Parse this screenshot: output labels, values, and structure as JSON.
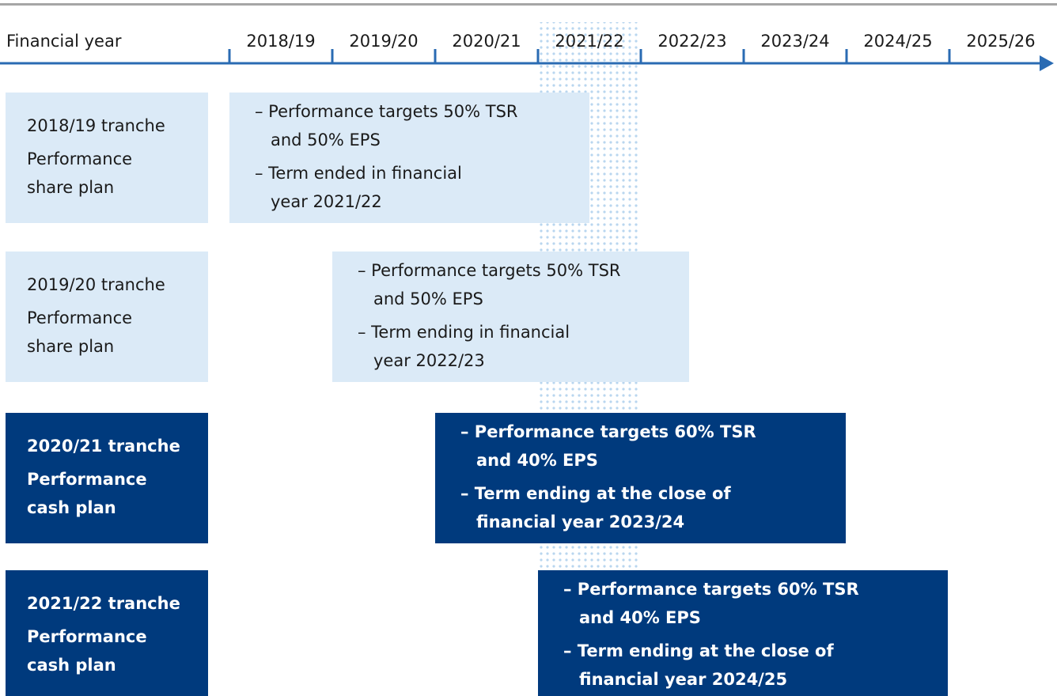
{
  "axis_label": "Financial year",
  "years": [
    "2018/19",
    "2019/20",
    "2020/21",
    "2021/22",
    "2022/23",
    "2023/24",
    "2024/25",
    "2025/26"
  ],
  "tranches": [
    {
      "title": "2018/19 tranche",
      "plan": [
        "Performance",
        "share plan"
      ],
      "bullets": [
        [
          "– Performance targets 50% TSR",
          "and 50% EPS"
        ],
        [
          "– Term ended in financial",
          "year 2021/22"
        ]
      ]
    },
    {
      "title": "2019/20 tranche",
      "plan": [
        "Performance",
        "share plan"
      ],
      "bullets": [
        [
          "– Performance targets 50% TSR",
          "and 50% EPS"
        ],
        [
          "– Term ending in financial",
          "year 2022/23"
        ]
      ]
    },
    {
      "title": "2020/21 tranche",
      "plan": [
        "Performance",
        "cash plan"
      ],
      "bullets": [
        [
          "– Performance targets 60% TSR",
          "and 40% EPS"
        ],
        [
          "– Term ending at the close of",
          "financial year 2023/24"
        ]
      ]
    },
    {
      "title": "2021/22 tranche",
      "plan": [
        "Performance",
        "cash plan"
      ],
      "bullets": [
        [
          "– Performance targets 60% TSR",
          "and 40% EPS"
        ],
        [
          "– Term ending at the close of",
          "financial year 2024/25"
        ]
      ]
    }
  ]
}
